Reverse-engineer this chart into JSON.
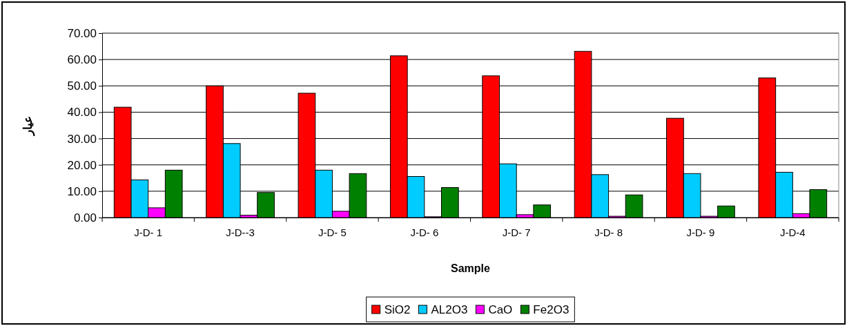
{
  "chart_data": {
    "type": "bar",
    "xlabel": "Sample",
    "ylabel": "عيار",
    "categories": [
      "J-D- 1",
      "J-D--3",
      "J-D- 5",
      "J-D- 6",
      "J-D- 7",
      "J-D- 8",
      "J-D- 9",
      "J-D-4"
    ],
    "series": [
      {
        "name": "SiO2",
        "color": "#ff0000",
        "values": [
          41.9,
          50.0,
          47.2,
          61.4,
          53.8,
          63.1,
          37.7,
          53.0
        ]
      },
      {
        "name": "AL2O3",
        "color": "#00ccff",
        "values": [
          14.3,
          28.1,
          18.0,
          15.6,
          20.4,
          16.3,
          16.7,
          17.2
        ]
      },
      {
        "name": "CaO",
        "color": "#ff00ff",
        "values": [
          3.7,
          0.9,
          2.4,
          0.3,
          1.1,
          0.5,
          0.5,
          1.5
        ]
      },
      {
        "name": "Fe2O3",
        "color": "#008000",
        "values": [
          18.0,
          9.5,
          16.7,
          11.4,
          4.8,
          8.6,
          4.4,
          10.6
        ]
      }
    ],
    "ylim": [
      0,
      70
    ],
    "yticks": [
      {
        "value": 0,
        "label": "0.00"
      },
      {
        "value": 10,
        "label": "10.00"
      },
      {
        "value": 20,
        "label": "20.00"
      },
      {
        "value": 30,
        "label": "30.00"
      },
      {
        "value": 40,
        "label": "40.00"
      },
      {
        "value": 50,
        "label": "50.00"
      },
      {
        "value": 60,
        "label": "60.00"
      },
      {
        "value": 70,
        "label": "70.00"
      }
    ],
    "grid": "y",
    "legend": "bottom"
  }
}
